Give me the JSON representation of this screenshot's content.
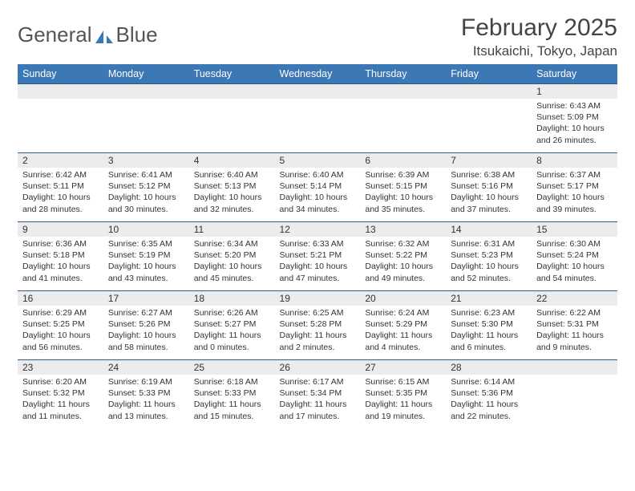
{
  "logo": {
    "word1": "General",
    "word2": "Blue"
  },
  "title": "February 2025",
  "location": "Itsukaichi, Tokyo, Japan",
  "colors": {
    "header_bg": "#3b78b5",
    "header_text": "#ffffff",
    "daynum_bg": "#ececec",
    "rule": "#2f5a85",
    "text": "#333333",
    "background": "#ffffff"
  },
  "dayNames": [
    "Sunday",
    "Monday",
    "Tuesday",
    "Wednesday",
    "Thursday",
    "Friday",
    "Saturday"
  ],
  "weeks": [
    [
      {
        "n": "",
        "sr": "",
        "ss": "",
        "dl": ""
      },
      {
        "n": "",
        "sr": "",
        "ss": "",
        "dl": ""
      },
      {
        "n": "",
        "sr": "",
        "ss": "",
        "dl": ""
      },
      {
        "n": "",
        "sr": "",
        "ss": "",
        "dl": ""
      },
      {
        "n": "",
        "sr": "",
        "ss": "",
        "dl": ""
      },
      {
        "n": "",
        "sr": "",
        "ss": "",
        "dl": ""
      },
      {
        "n": "1",
        "sr": "Sunrise: 6:43 AM",
        "ss": "Sunset: 5:09 PM",
        "dl": "Daylight: 10 hours and 26 minutes."
      }
    ],
    [
      {
        "n": "2",
        "sr": "Sunrise: 6:42 AM",
        "ss": "Sunset: 5:11 PM",
        "dl": "Daylight: 10 hours and 28 minutes."
      },
      {
        "n": "3",
        "sr": "Sunrise: 6:41 AM",
        "ss": "Sunset: 5:12 PM",
        "dl": "Daylight: 10 hours and 30 minutes."
      },
      {
        "n": "4",
        "sr": "Sunrise: 6:40 AM",
        "ss": "Sunset: 5:13 PM",
        "dl": "Daylight: 10 hours and 32 minutes."
      },
      {
        "n": "5",
        "sr": "Sunrise: 6:40 AM",
        "ss": "Sunset: 5:14 PM",
        "dl": "Daylight: 10 hours and 34 minutes."
      },
      {
        "n": "6",
        "sr": "Sunrise: 6:39 AM",
        "ss": "Sunset: 5:15 PM",
        "dl": "Daylight: 10 hours and 35 minutes."
      },
      {
        "n": "7",
        "sr": "Sunrise: 6:38 AM",
        "ss": "Sunset: 5:16 PM",
        "dl": "Daylight: 10 hours and 37 minutes."
      },
      {
        "n": "8",
        "sr": "Sunrise: 6:37 AM",
        "ss": "Sunset: 5:17 PM",
        "dl": "Daylight: 10 hours and 39 minutes."
      }
    ],
    [
      {
        "n": "9",
        "sr": "Sunrise: 6:36 AM",
        "ss": "Sunset: 5:18 PM",
        "dl": "Daylight: 10 hours and 41 minutes."
      },
      {
        "n": "10",
        "sr": "Sunrise: 6:35 AM",
        "ss": "Sunset: 5:19 PM",
        "dl": "Daylight: 10 hours and 43 minutes."
      },
      {
        "n": "11",
        "sr": "Sunrise: 6:34 AM",
        "ss": "Sunset: 5:20 PM",
        "dl": "Daylight: 10 hours and 45 minutes."
      },
      {
        "n": "12",
        "sr": "Sunrise: 6:33 AM",
        "ss": "Sunset: 5:21 PM",
        "dl": "Daylight: 10 hours and 47 minutes."
      },
      {
        "n": "13",
        "sr": "Sunrise: 6:32 AM",
        "ss": "Sunset: 5:22 PM",
        "dl": "Daylight: 10 hours and 49 minutes."
      },
      {
        "n": "14",
        "sr": "Sunrise: 6:31 AM",
        "ss": "Sunset: 5:23 PM",
        "dl": "Daylight: 10 hours and 52 minutes."
      },
      {
        "n": "15",
        "sr": "Sunrise: 6:30 AM",
        "ss": "Sunset: 5:24 PM",
        "dl": "Daylight: 10 hours and 54 minutes."
      }
    ],
    [
      {
        "n": "16",
        "sr": "Sunrise: 6:29 AM",
        "ss": "Sunset: 5:25 PM",
        "dl": "Daylight: 10 hours and 56 minutes."
      },
      {
        "n": "17",
        "sr": "Sunrise: 6:27 AM",
        "ss": "Sunset: 5:26 PM",
        "dl": "Daylight: 10 hours and 58 minutes."
      },
      {
        "n": "18",
        "sr": "Sunrise: 6:26 AM",
        "ss": "Sunset: 5:27 PM",
        "dl": "Daylight: 11 hours and 0 minutes."
      },
      {
        "n": "19",
        "sr": "Sunrise: 6:25 AM",
        "ss": "Sunset: 5:28 PM",
        "dl": "Daylight: 11 hours and 2 minutes."
      },
      {
        "n": "20",
        "sr": "Sunrise: 6:24 AM",
        "ss": "Sunset: 5:29 PM",
        "dl": "Daylight: 11 hours and 4 minutes."
      },
      {
        "n": "21",
        "sr": "Sunrise: 6:23 AM",
        "ss": "Sunset: 5:30 PM",
        "dl": "Daylight: 11 hours and 6 minutes."
      },
      {
        "n": "22",
        "sr": "Sunrise: 6:22 AM",
        "ss": "Sunset: 5:31 PM",
        "dl": "Daylight: 11 hours and 9 minutes."
      }
    ],
    [
      {
        "n": "23",
        "sr": "Sunrise: 6:20 AM",
        "ss": "Sunset: 5:32 PM",
        "dl": "Daylight: 11 hours and 11 minutes."
      },
      {
        "n": "24",
        "sr": "Sunrise: 6:19 AM",
        "ss": "Sunset: 5:33 PM",
        "dl": "Daylight: 11 hours and 13 minutes."
      },
      {
        "n": "25",
        "sr": "Sunrise: 6:18 AM",
        "ss": "Sunset: 5:33 PM",
        "dl": "Daylight: 11 hours and 15 minutes."
      },
      {
        "n": "26",
        "sr": "Sunrise: 6:17 AM",
        "ss": "Sunset: 5:34 PM",
        "dl": "Daylight: 11 hours and 17 minutes."
      },
      {
        "n": "27",
        "sr": "Sunrise: 6:15 AM",
        "ss": "Sunset: 5:35 PM",
        "dl": "Daylight: 11 hours and 19 minutes."
      },
      {
        "n": "28",
        "sr": "Sunrise: 6:14 AM",
        "ss": "Sunset: 5:36 PM",
        "dl": "Daylight: 11 hours and 22 minutes."
      },
      {
        "n": "",
        "sr": "",
        "ss": "",
        "dl": ""
      }
    ]
  ]
}
